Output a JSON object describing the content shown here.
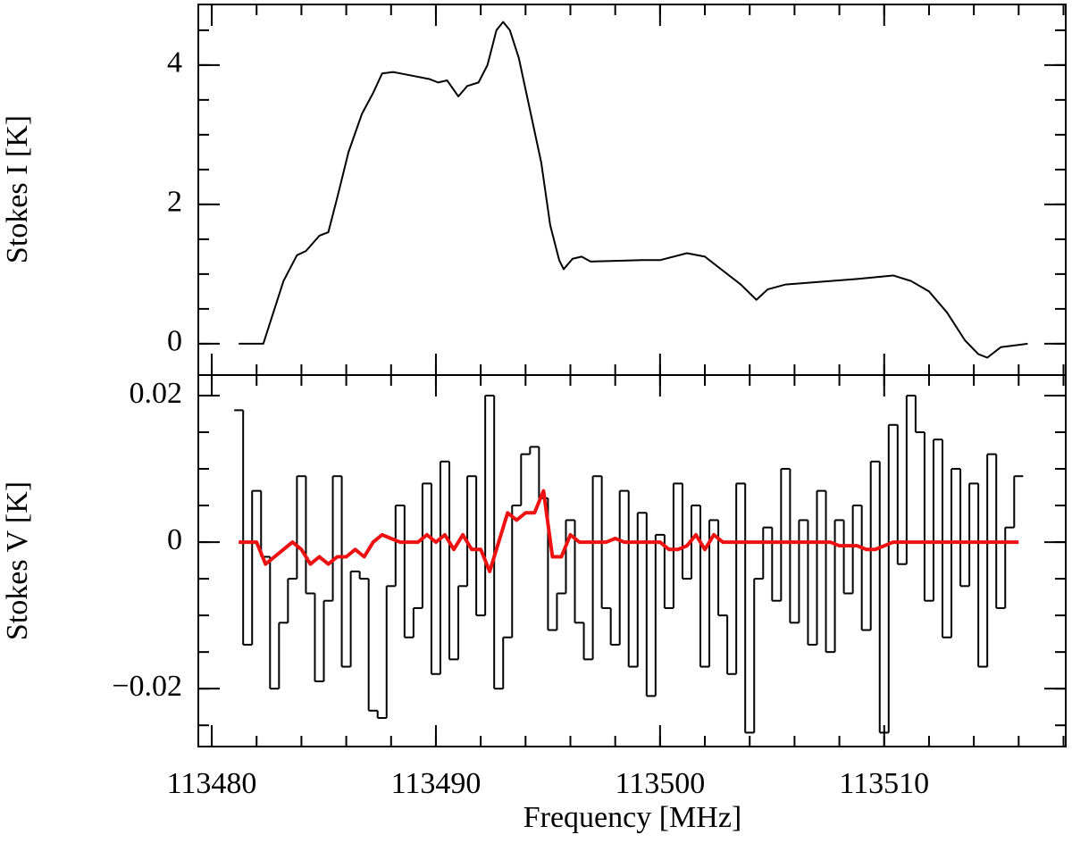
{
  "chart_data": [
    {
      "type": "line",
      "ylabel": "Stokes I [K]",
      "xlim": [
        113479.4,
        113518.1
      ],
      "xticks": [
        113480,
        113490,
        113500,
        113510
      ],
      "ylim": [
        -0.45,
        4.87
      ],
      "yticks": [
        0,
        2,
        4
      ],
      "x": [
        113481.2,
        113482.3,
        113482.7,
        113483.2,
        113483.8,
        113484.2,
        113484.8,
        113485.2,
        113485.6,
        113486.1,
        113486.7,
        113487.2,
        113487.6,
        113488.1,
        113488.9,
        113489.7,
        113490.1,
        113490.5,
        113491.0,
        113491.4,
        113491.9,
        113492.3,
        113492.7,
        113493.0,
        113493.3,
        113493.7,
        113494.3,
        113494.7,
        113495.1,
        113495.5,
        113495.7,
        113496.1,
        113496.5,
        113496.9,
        113498.0,
        113499.2,
        113500.0,
        113501.2,
        113502.0,
        113502.8,
        113503.6,
        113504.3,
        113504.8,
        113505.6,
        113506.8,
        113508.8,
        113510.4,
        113511.2,
        113512.0,
        113512.8,
        113513.6,
        113514.2,
        113514.6,
        113515.2,
        113516.4
      ],
      "series": [
        {
          "color": "#000000",
          "values": [
            0,
            0,
            0.4,
            0.9,
            1.27,
            1.33,
            1.55,
            1.6,
            2.1,
            2.75,
            3.3,
            3.6,
            3.88,
            3.9,
            3.85,
            3.8,
            3.75,
            3.78,
            3.55,
            3.7,
            3.75,
            4.0,
            4.5,
            4.62,
            4.5,
            4.1,
            3.2,
            2.6,
            1.7,
            1.2,
            1.07,
            1.22,
            1.25,
            1.18,
            1.19,
            1.2,
            1.2,
            1.3,
            1.25,
            1.05,
            0.85,
            0.63,
            0.78,
            0.85,
            0.88,
            0.93,
            0.98,
            0.9,
            0.75,
            0.45,
            0.05,
            -0.15,
            -0.2,
            -0.05,
            0
          ]
        }
      ]
    },
    {
      "type": "line",
      "xlabel": "Frequency [MHz]",
      "ylabel": "Stokes V [K]",
      "xlim": [
        113479.4,
        113518.1
      ],
      "xticks": [
        113480,
        113490,
        113500,
        113510
      ],
      "ylim": [
        -0.0279,
        0.0228
      ],
      "yticks": [
        0.02,
        0,
        {
          "value": -0.02,
          "label": "−0.02"
        }
      ],
      "x": [
        113481.2,
        113481.6,
        113482.0,
        113482.4,
        113482.8,
        113483.2,
        113483.6,
        113484.0,
        113484.4,
        113484.8,
        113485.2,
        113485.6,
        113486.0,
        113486.4,
        113486.8,
        113487.2,
        113487.6,
        113488.0,
        113488.4,
        113488.8,
        113489.2,
        113489.6,
        113490.0,
        113490.4,
        113490.8,
        113491.2,
        113491.6,
        113492.0,
        113492.4,
        113492.8,
        113493.2,
        113493.6,
        113494.0,
        113494.4,
        113494.8,
        113495.2,
        113495.6,
        113496.0,
        113496.4,
        113496.8,
        113497.2,
        113497.6,
        113498.0,
        113498.4,
        113498.8,
        113499.2,
        113499.6,
        113500.0,
        113500.4,
        113500.8,
        113501.2,
        113501.6,
        113502.0,
        113502.4,
        113502.8,
        113503.2,
        113503.6,
        113504.0,
        113504.4,
        113504.8,
        113505.2,
        113505.6,
        113506.0,
        113506.4,
        113506.8,
        113507.2,
        113507.6,
        113508.0,
        113508.4,
        113508.8,
        113509.2,
        113509.6,
        113510.0,
        113510.4,
        113510.8,
        113511.2,
        113511.6,
        113512.0,
        113512.4,
        113512.8,
        113513.2,
        113513.6,
        113514.0,
        113514.4,
        113514.8,
        113515.2,
        113515.6,
        113516.0
      ],
      "series": [
        {
          "color": "#000000",
          "step": true,
          "values": [
            0.018,
            -0.014,
            0.007,
            -0.002,
            -0.02,
            -0.011,
            -0.005,
            0.009,
            -0.007,
            -0.019,
            -0.008,
            0.009,
            -0.017,
            -0.004,
            -0.005,
            -0.023,
            -0.024,
            -0.006,
            0.005,
            -0.013,
            -0.009,
            0.008,
            -0.018,
            0.011,
            -0.016,
            -0.006,
            0.009,
            -0.01,
            0.02,
            -0.02,
            -0.013,
            0.005,
            0.012,
            0.013,
            0.006,
            -0.012,
            -0.007,
            0.003,
            -0.011,
            -0.016,
            0.009,
            -0.009,
            -0.014,
            0.007,
            -0.017,
            0.004,
            -0.021,
            0.001,
            -0.009,
            0.008,
            -0.005,
            0.005,
            -0.017,
            0.003,
            -0.01,
            -0.018,
            0.008,
            -0.026,
            -0.005,
            0.002,
            -0.008,
            0.01,
            -0.011,
            0.003,
            -0.014,
            0.007,
            -0.015,
            0.003,
            -0.007,
            0.005,
            -0.012,
            0.011,
            -0.026,
            0.016,
            -0.003,
            0.02,
            0.015,
            -0.008,
            0.014,
            -0.013,
            0.01,
            -0.006,
            0.008,
            -0.017,
            0.012,
            -0.009,
            0.002,
            0.009
          ]
        },
        {
          "color": "#ee1111",
          "values": [
            0,
            0,
            0,
            -0.003,
            -0.002,
            -0.001,
            0,
            -0.001,
            -0.003,
            -0.002,
            -0.003,
            -0.002,
            -0.002,
            -0.001,
            -0.002,
            0,
            0.001,
            0.0005,
            0,
            0,
            0,
            0.001,
            0,
            0.001,
            -0.001,
            0.001,
            -0.001,
            -0.001,
            -0.004,
            0.0,
            0.004,
            0.003,
            0.004,
            0.004,
            0.007,
            -0.002,
            -0.002,
            0.001,
            0,
            0,
            0,
            0,
            0.0005,
            0,
            0,
            0,
            0,
            0,
            -0.001,
            -0.001,
            -0.0005,
            0.001,
            -0.001,
            0.001,
            0,
            0,
            0,
            0,
            0,
            0,
            0,
            0,
            0,
            0,
            0,
            0,
            0,
            -0.0005,
            -0.0005,
            -0.0005,
            -0.001,
            -0.001,
            -0.0005,
            0,
            0,
            0,
            0,
            0,
            0,
            0,
            0,
            0,
            0,
            0,
            0,
            0,
            0,
            0
          ]
        }
      ]
    }
  ]
}
